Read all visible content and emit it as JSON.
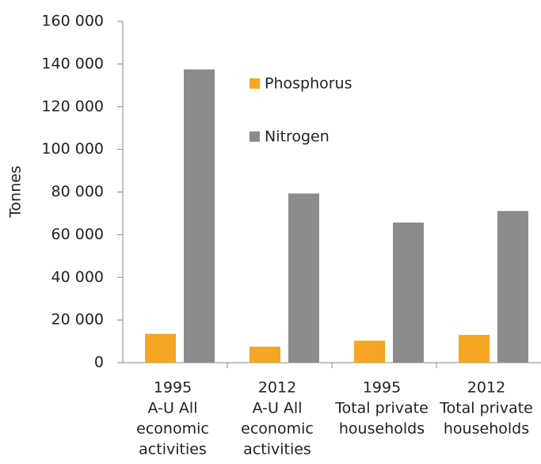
{
  "chart_data": {
    "type": "bar",
    "y_label": "Tonnes",
    "categories": [
      [
        "1995",
        "A-U All",
        "economic",
        "activities"
      ],
      [
        "2012",
        "A-U All",
        "economic",
        "activities"
      ],
      [
        "1995",
        "Total private",
        "households"
      ],
      [
        "2012",
        "Total private",
        "households"
      ]
    ],
    "series": [
      {
        "name": "Phosphorus",
        "color": "#f5a623",
        "values": [
          13500,
          7500,
          10300,
          13000
        ]
      },
      {
        "name": "Nitrogen",
        "color": "#8c8c8c",
        "values": [
          137500,
          79300,
          65700,
          71100
        ]
      }
    ],
    "ylim": [
      0,
      160000
    ],
    "yticks": [
      0,
      {
        "value": 20000,
        "label": "20 000"
      },
      {
        "value": 40000,
        "label": "40 000"
      },
      {
        "value": 60000,
        "label": "60 000"
      },
      {
        "value": 80000,
        "label": "80 000"
      },
      {
        "value": 100000,
        "label": "100 000"
      },
      {
        "value": 120000,
        "label": "120 000"
      },
      {
        "value": 140000,
        "label": "140 000"
      },
      {
        "value": 160000,
        "label": "160 000"
      }
    ],
    "grid": false,
    "legend": "top"
  }
}
